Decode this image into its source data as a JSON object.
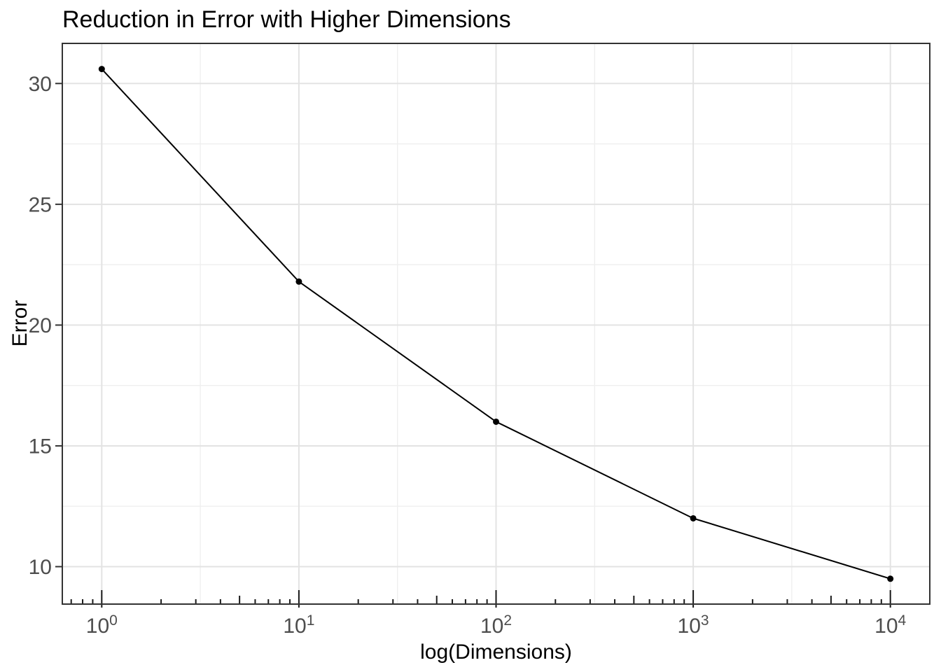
{
  "chart_data": {
    "type": "line",
    "title": "Reduction in Error with Higher Dimensions",
    "xlabel": "log(Dimensions)",
    "ylabel": "Error",
    "x_scale": "log10",
    "series": [
      {
        "name": "Error",
        "x": [
          1,
          10,
          100,
          1000,
          10000
        ],
        "y": [
          30.6,
          21.8,
          16.0,
          12.0,
          9.5
        ]
      }
    ],
    "x_ticks": [
      {
        "log10": 0,
        "base": "10",
        "exp": "0"
      },
      {
        "log10": 1,
        "base": "10",
        "exp": "1"
      },
      {
        "log10": 2,
        "base": "10",
        "exp": "2"
      },
      {
        "log10": 3,
        "base": "10",
        "exp": "3"
      },
      {
        "log10": 4,
        "base": "10",
        "exp": "4"
      }
    ],
    "x_minor_gridlines_log10": [
      0.5,
      1.5,
      2.5,
      3.5
    ],
    "y_ticks": [
      {
        "value": 10,
        "label": "10"
      },
      {
        "value": 15,
        "label": "15"
      },
      {
        "value": 20,
        "label": "20"
      },
      {
        "value": 25,
        "label": "25"
      },
      {
        "value": 30,
        "label": "30"
      }
    ],
    "y_minor_gridlines": [
      12.5,
      17.5,
      22.5,
      27.5
    ],
    "x_domain_log10": [
      -0.2,
      4.2
    ],
    "y_domain": [
      8.45,
      31.66
    ],
    "grid": "major+minor",
    "legend": "none",
    "log_ticks_side": "bottom",
    "line_color": "#000000",
    "point_color": "#000000"
  },
  "style": {
    "background": "#ffffff",
    "panel_background": "#ffffff",
    "panel_border": "#333333",
    "grid_major": "#e3e3e3",
    "grid_minor": "#efefef",
    "axis_tick_color": "#333333",
    "logtick_color": "#1a1a1a",
    "tick_label_color": "#4d4d4d",
    "title_color": "#000000",
    "axis_title_color": "#000000"
  }
}
